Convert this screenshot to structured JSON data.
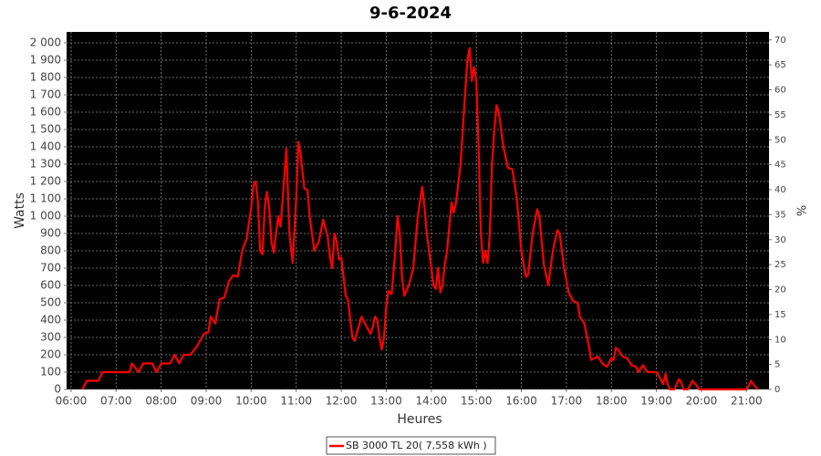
{
  "chart_data": {
    "type": "line",
    "title": "9-6-2024",
    "xlabel": "Heures",
    "ylabel": "Watts",
    "y2label": "%",
    "xlim": [
      5.9,
      21.5
    ],
    "xticks": [
      {
        "value": 6,
        "label": "06:00"
      },
      {
        "value": 7,
        "label": "07:00"
      },
      {
        "value": 8,
        "label": "08:00"
      },
      {
        "value": 9,
        "label": "09:00"
      },
      {
        "value": 10,
        "label": "10:00"
      },
      {
        "value": 11,
        "label": "11:00"
      },
      {
        "value": 12,
        "label": "12:00"
      },
      {
        "value": 13,
        "label": "13:00"
      },
      {
        "value": 14,
        "label": "14:00"
      },
      {
        "value": 15,
        "label": "15:00"
      },
      {
        "value": 16,
        "label": "16:00"
      },
      {
        "value": 17,
        "label": "17:00"
      },
      {
        "value": 18,
        "label": "18:00"
      },
      {
        "value": 19,
        "label": "19:00"
      },
      {
        "value": 20,
        "label": "20:00"
      },
      {
        "value": 21,
        "label": "21:00"
      }
    ],
    "ylim": [
      0,
      2063
    ],
    "yticks": [
      0,
      100,
      200,
      300,
      400,
      500,
      600,
      700,
      800,
      900,
      {
        "value": 1000,
        "label": "1 000"
      },
      {
        "value": 1100,
        "label": "1 100"
      },
      {
        "value": 1200,
        "label": "1 200"
      },
      {
        "value": 1300,
        "label": "1 300"
      },
      {
        "value": 1400,
        "label": "1 400"
      },
      {
        "value": 1500,
        "label": "1 500"
      },
      {
        "value": 1600,
        "label": "1 600"
      },
      {
        "value": 1700,
        "label": "1 700"
      },
      {
        "value": 1800,
        "label": "1 800"
      },
      {
        "value": 1900,
        "label": "1 900"
      },
      {
        "value": 2000,
        "label": "2 000"
      }
    ],
    "y2lim": [
      0,
      71.6
    ],
    "y2ticks": [
      0,
      5,
      10,
      15,
      20,
      25,
      30,
      35,
      40,
      45,
      50,
      55,
      60,
      65,
      70
    ],
    "grid": true,
    "legend": "bottom",
    "x": [
      6.25,
      6.35,
      6.6,
      6.7,
      7.3,
      7.35,
      7.5,
      7.6,
      7.8,
      7.9,
      8.0,
      8.2,
      8.3,
      8.4,
      8.5,
      8.65,
      8.8,
      8.95,
      9.05,
      9.1,
      9.2,
      9.3,
      9.4,
      9.5,
      9.6,
      9.7,
      9.8,
      9.9,
      10.0,
      10.05,
      10.1,
      10.15,
      10.2,
      10.25,
      10.3,
      10.35,
      10.4,
      10.45,
      10.5,
      10.55,
      10.6,
      10.65,
      10.7,
      10.78,
      10.85,
      10.92,
      11.0,
      11.05,
      11.1,
      11.18,
      11.25,
      11.3,
      11.4,
      11.5,
      11.6,
      11.7,
      11.75,
      11.8,
      11.85,
      11.9,
      11.95,
      12.0,
      12.05,
      12.1,
      12.15,
      12.2,
      12.25,
      12.3,
      12.35,
      12.45,
      12.55,
      12.65,
      12.7,
      12.75,
      12.8,
      12.85,
      12.9,
      12.95,
      13.0,
      13.05,
      13.12,
      13.2,
      13.25,
      13.3,
      13.35,
      13.4,
      13.5,
      13.6,
      13.7,
      13.8,
      13.85,
      13.9,
      14.0,
      14.05,
      14.1,
      14.15,
      14.2,
      14.25,
      14.3,
      14.35,
      14.45,
      14.5,
      14.55,
      14.65,
      14.75,
      14.8,
      14.85,
      14.9,
      14.95,
      15.0,
      15.05,
      15.1,
      15.15,
      15.2,
      15.25,
      15.3,
      15.35,
      15.4,
      15.45,
      15.5,
      15.6,
      15.7,
      15.8,
      15.9,
      16.0,
      16.1,
      16.15,
      16.25,
      16.35,
      16.4,
      16.5,
      16.6,
      16.7,
      16.8,
      16.85,
      16.95,
      17.05,
      17.15,
      17.25,
      17.3,
      17.4,
      17.5,
      17.55,
      17.7,
      17.8,
      17.9,
      18.0,
      18.05,
      18.1,
      18.15,
      18.25,
      18.35,
      18.45,
      18.55,
      18.6,
      18.7,
      18.8,
      18.9,
      19.0,
      19.05,
      19.15,
      19.2,
      19.25,
      19.3,
      19.4,
      19.5,
      19.55,
      19.6,
      19.7,
      19.8,
      19.9,
      19.95,
      20.3,
      20.5,
      21.0,
      21.05,
      21.1,
      21.15,
      21.25
    ],
    "series": [
      {
        "name": "SB 3000 TL 20( 7,558 kWh )",
        "color": "#ff0000",
        "values": [
          0,
          50,
          50,
          100,
          100,
          150,
          100,
          150,
          150,
          100,
          150,
          150,
          200,
          150,
          200,
          200,
          250,
          320,
          330,
          420,
          380,
          520,
          530,
          620,
          660,
          650,
          800,
          870,
          1050,
          1180,
          1200,
          1080,
          800,
          780,
          1050,
          1140,
          1050,
          850,
          790,
          900,
          1000,
          940,
          1100,
          1390,
          900,
          730,
          1100,
          1430,
          1350,
          1160,
          1150,
          1000,
          800,
          850,
          980,
          880,
          760,
          700,
          900,
          850,
          750,
          760,
          650,
          540,
          520,
          400,
          300,
          280,
          330,
          420,
          370,
          320,
          360,
          420,
          400,
          300,
          230,
          300,
          480,
          570,
          550,
          800,
          1000,
          900,
          650,
          540,
          600,
          700,
          1000,
          1170,
          1050,
          900,
          700,
          600,
          580,
          700,
          560,
          600,
          720,
          800,
          1080,
          1020,
          1080,
          1300,
          1700,
          1900,
          1970,
          1780,
          1860,
          1780,
          1400,
          900,
          730,
          800,
          730,
          900,
          1300,
          1500,
          1640,
          1600,
          1400,
          1280,
          1270,
          1100,
          800,
          650,
          660,
          900,
          1040,
          1000,
          720,
          600,
          800,
          920,
          900,
          700,
          560,
          510,
          500,
          420,
          380,
          250,
          170,
          190,
          150,
          130,
          180,
          170,
          240,
          230,
          190,
          180,
          140,
          130,
          100,
          140,
          100,
          100,
          100,
          80,
          30,
          90,
          30,
          0,
          0,
          60,
          40,
          0,
          0,
          50,
          20,
          0,
          0,
          0,
          0,
          20,
          50,
          30,
          0
        ]
      }
    ]
  }
}
